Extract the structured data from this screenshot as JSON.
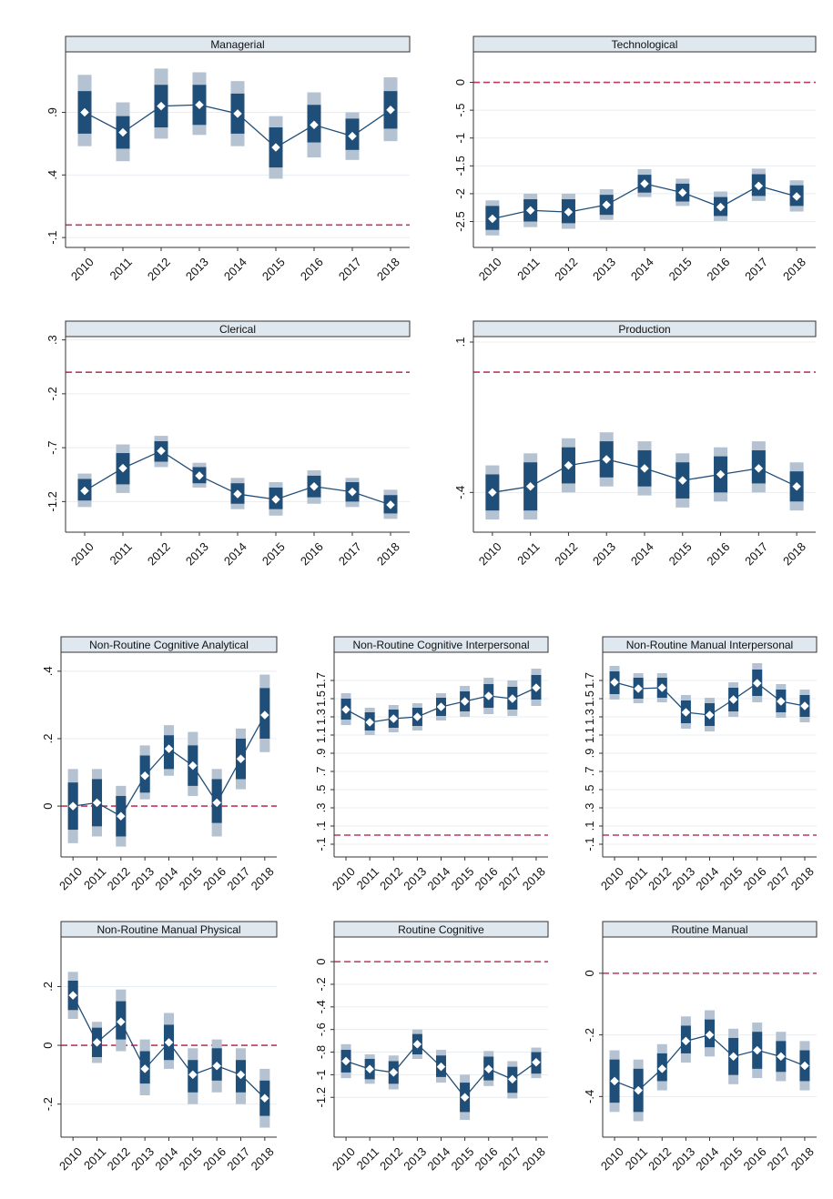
{
  "chart_data": [
    {
      "type": "point-range",
      "title": "Managerial",
      "x": [
        "2010",
        "2011",
        "2012",
        "2013",
        "2014",
        "2015",
        "2016",
        "2017",
        "2018"
      ],
      "y": [
        0.9,
        0.74,
        0.95,
        0.96,
        0.89,
        0.62,
        0.8,
        0.71,
        0.92
      ],
      "ci_inner": [
        [
          0.73,
          1.07
        ],
        [
          0.61,
          0.87
        ],
        [
          0.78,
          1.12
        ],
        [
          0.8,
          1.12
        ],
        [
          0.73,
          1.05
        ],
        [
          0.46,
          0.78
        ],
        [
          0.66,
          0.96
        ],
        [
          0.6,
          0.85
        ],
        [
          0.77,
          1.07
        ]
      ],
      "ci_outer": [
        [
          0.63,
          1.2
        ],
        [
          0.51,
          0.98
        ],
        [
          0.69,
          1.25
        ],
        [
          0.72,
          1.22
        ],
        [
          0.63,
          1.15
        ],
        [
          0.37,
          0.87
        ],
        [
          0.54,
          1.06
        ],
        [
          0.52,
          0.9
        ],
        [
          0.67,
          1.18
        ]
      ],
      "ref_line": 0,
      "yticks": [
        "-.1",
        ".4",
        ".9"
      ],
      "ytick_values": [
        -0.1,
        0.4,
        0.9
      ],
      "ylim": [
        -0.15,
        1.34
      ]
    },
    {
      "type": "point-range",
      "title": "Technological",
      "x": [
        "2010",
        "2011",
        "2012",
        "2013",
        "2014",
        "2015",
        "2016",
        "2017",
        "2018"
      ],
      "y": [
        -2.45,
        -2.3,
        -2.33,
        -2.2,
        -1.82,
        -1.98,
        -2.24,
        -1.86,
        -2.05
      ],
      "ci_inner": [
        [
          -2.65,
          -2.22
        ],
        [
          -2.5,
          -2.1
        ],
        [
          -2.53,
          -2.1
        ],
        [
          -2.38,
          -2.02
        ],
        [
          -1.98,
          -1.66
        ],
        [
          -2.14,
          -1.82
        ],
        [
          -2.4,
          -2.06
        ],
        [
          -2.04,
          -1.65
        ],
        [
          -2.22,
          -1.85
        ]
      ],
      "ci_outer": [
        [
          -2.75,
          -2.12
        ],
        [
          -2.6,
          -2.0
        ],
        [
          -2.63,
          -2.0
        ],
        [
          -2.47,
          -1.92
        ],
        [
          -2.06,
          -1.56
        ],
        [
          -2.22,
          -1.73
        ],
        [
          -2.49,
          -1.96
        ],
        [
          -2.13,
          -1.55
        ],
        [
          -2.32,
          -1.76
        ]
      ],
      "ref_line": 0,
      "yticks": [
        "0",
        "-.5",
        "-1",
        "-1.5",
        "-2",
        "-2.5"
      ],
      "ytick_values": [
        0,
        -0.5,
        -1,
        -1.5,
        -2,
        -2.5
      ],
      "ylim": [
        -2.9,
        0.45
      ]
    },
    {
      "type": "point-range",
      "title": "Clerical",
      "x": [
        "2010",
        "2011",
        "2012",
        "2013",
        "2014",
        "2015",
        "2016",
        "2017",
        "2018"
      ],
      "y": [
        -1.1,
        -0.89,
        -0.73,
        -0.96,
        -1.13,
        -1.18,
        -1.06,
        -1.11,
        -1.23
      ],
      "ci_inner": [
        [
          -1.19,
          -0.99
        ],
        [
          -1.04,
          -0.75
        ],
        [
          -0.83,
          -0.64
        ],
        [
          -1.03,
          -0.88
        ],
        [
          -1.22,
          -1.03
        ],
        [
          -1.27,
          -1.07
        ],
        [
          -1.16,
          -0.96
        ],
        [
          -1.2,
          -1.02
        ],
        [
          -1.31,
          -1.14
        ]
      ],
      "ci_outer": [
        [
          -1.25,
          -0.94
        ],
        [
          -1.12,
          -0.67
        ],
        [
          -0.88,
          -0.59
        ],
        [
          -1.07,
          -0.84
        ],
        [
          -1.27,
          -0.98
        ],
        [
          -1.33,
          -1.02
        ],
        [
          -1.22,
          -0.91
        ],
        [
          -1.25,
          -0.98
        ],
        [
          -1.36,
          -1.09
        ]
      ],
      "ref_line": 0,
      "yticks": [
        "-1.2",
        "-.7",
        "-.2",
        ".3"
      ],
      "ytick_values": [
        -1.2,
        -0.7,
        -0.2,
        0.3
      ],
      "ylim": [
        -1.45,
        0.28
      ]
    },
    {
      "type": "point-range",
      "title": "Production",
      "x": [
        "2010",
        "2011",
        "2012",
        "2013",
        "2014",
        "2015",
        "2016",
        "2017",
        "2018"
      ],
      "y": [
        -0.4,
        -0.38,
        -0.31,
        -0.29,
        -0.32,
        -0.36,
        -0.34,
        -0.32,
        -0.38
      ],
      "ci_inner": [
        [
          -0.46,
          -0.34
        ],
        [
          -0.46,
          -0.3
        ],
        [
          -0.37,
          -0.25
        ],
        [
          -0.35,
          -0.23
        ],
        [
          -0.38,
          -0.26
        ],
        [
          -0.42,
          -0.3
        ],
        [
          -0.4,
          -0.28
        ],
        [
          -0.37,
          -0.26
        ],
        [
          -0.43,
          -0.33
        ]
      ],
      "ci_outer": [
        [
          -0.49,
          -0.31
        ],
        [
          -0.49,
          -0.27
        ],
        [
          -0.4,
          -0.22
        ],
        [
          -0.38,
          -0.2
        ],
        [
          -0.41,
          -0.23
        ],
        [
          -0.45,
          -0.27
        ],
        [
          -0.43,
          -0.25
        ],
        [
          -0.4,
          -0.23
        ],
        [
          -0.46,
          -0.3
        ]
      ],
      "ref_line": 0,
      "yticks": [
        "-.4",
        ".1"
      ],
      "ytick_values": [
        -0.4,
        0.1
      ],
      "ylim": [
        -0.52,
        0.1
      ]
    },
    {
      "type": "point-range",
      "title": "Non-Routine Cognitive Analytical",
      "x": [
        "2010",
        "2011",
        "2012",
        "2013",
        "2014",
        "2015",
        "2016",
        "2017",
        "2018"
      ],
      "y": [
        0.0,
        0.01,
        -0.03,
        0.09,
        0.17,
        0.12,
        0.01,
        0.14,
        0.27
      ],
      "ci_inner": [
        [
          -0.07,
          0.07
        ],
        [
          -0.06,
          0.08
        ],
        [
          -0.09,
          0.03
        ],
        [
          0.04,
          0.15
        ],
        [
          0.11,
          0.21
        ],
        [
          0.06,
          0.18
        ],
        [
          -0.05,
          0.08
        ],
        [
          0.08,
          0.2
        ],
        [
          0.2,
          0.35
        ]
      ],
      "ci_outer": [
        [
          -0.11,
          0.11
        ],
        [
          -0.09,
          0.11
        ],
        [
          -0.12,
          0.06
        ],
        [
          0.02,
          0.18
        ],
        [
          0.09,
          0.24
        ],
        [
          0.03,
          0.22
        ],
        [
          -0.09,
          0.11
        ],
        [
          0.05,
          0.23
        ],
        [
          0.16,
          0.39
        ]
      ],
      "ref_line": 0,
      "yticks": [
        "0",
        ".2",
        ".4"
      ],
      "ytick_values": [
        0,
        0.2,
        0.4
      ],
      "ylim": [
        -0.14,
        0.44
      ]
    },
    {
      "type": "point-range",
      "title": "Non-Routine Cognitive Interpersonal",
      "x": [
        "2010",
        "2011",
        "2012",
        "2013",
        "2014",
        "2015",
        "2016",
        "2017",
        "2018"
      ],
      "y": [
        1.38,
        1.24,
        1.28,
        1.3,
        1.41,
        1.47,
        1.53,
        1.5,
        1.62
      ],
      "ci_inner": [
        [
          1.27,
          1.5
        ],
        [
          1.15,
          1.35
        ],
        [
          1.18,
          1.38
        ],
        [
          1.2,
          1.4
        ],
        [
          1.31,
          1.51
        ],
        [
          1.36,
          1.58
        ],
        [
          1.4,
          1.66
        ],
        [
          1.38,
          1.63
        ],
        [
          1.49,
          1.76
        ]
      ],
      "ci_outer": [
        [
          1.21,
          1.56
        ],
        [
          1.1,
          1.4
        ],
        [
          1.13,
          1.43
        ],
        [
          1.15,
          1.45
        ],
        [
          1.26,
          1.56
        ],
        [
          1.3,
          1.64
        ],
        [
          1.33,
          1.73
        ],
        [
          1.31,
          1.7
        ],
        [
          1.42,
          1.83
        ]
      ],
      "ref_line": 0,
      "yticks": [
        "-.1",
        ".1",
        ".3",
        ".5",
        ".7",
        ".9",
        "1.1",
        "1.3",
        "1.5",
        "1.7"
      ],
      "ytick_values": [
        -0.1,
        0.1,
        0.3,
        0.5,
        0.7,
        0.9,
        1.1,
        1.3,
        1.5,
        1.7
      ],
      "ylim": [
        -0.2,
        1.95
      ]
    },
    {
      "type": "point-range",
      "title": "Non-Routine Manual Interpersonal",
      "x": [
        "2010",
        "2011",
        "2012",
        "2013",
        "2014",
        "2015",
        "2016",
        "2017",
        "2018"
      ],
      "y": [
        1.68,
        1.61,
        1.62,
        1.35,
        1.32,
        1.49,
        1.67,
        1.47,
        1.42
      ],
      "ci_inner": [
        [
          1.55,
          1.8
        ],
        [
          1.5,
          1.73
        ],
        [
          1.51,
          1.73
        ],
        [
          1.23,
          1.48
        ],
        [
          1.2,
          1.45
        ],
        [
          1.36,
          1.62
        ],
        [
          1.53,
          1.82
        ],
        [
          1.35,
          1.6
        ],
        [
          1.3,
          1.54
        ]
      ],
      "ci_outer": [
        [
          1.49,
          1.86
        ],
        [
          1.45,
          1.78
        ],
        [
          1.46,
          1.78
        ],
        [
          1.17,
          1.54
        ],
        [
          1.14,
          1.51
        ],
        [
          1.3,
          1.68
        ],
        [
          1.46,
          1.89
        ],
        [
          1.29,
          1.66
        ],
        [
          1.24,
          1.6
        ]
      ],
      "ref_line": 0,
      "yticks": [
        "-.1",
        ".1",
        ".3",
        ".5",
        ".7",
        ".9",
        "1.1",
        "1.3",
        "1.5",
        "1.7"
      ],
      "ytick_values": [
        -0.1,
        0.1,
        0.3,
        0.5,
        0.7,
        0.9,
        1.1,
        1.3,
        1.5,
        1.7
      ],
      "ylim": [
        -0.2,
        1.95
      ]
    },
    {
      "type": "point-range",
      "title": "Non-Routine Manual Physical",
      "x": [
        "2010",
        "2011",
        "2012",
        "2013",
        "2014",
        "2015",
        "2016",
        "2017",
        "2018"
      ],
      "y": [
        0.17,
        0.01,
        0.08,
        -0.08,
        0.01,
        -0.1,
        -0.07,
        -0.1,
        -0.18
      ],
      "ci_inner": [
        [
          0.12,
          0.22
        ],
        [
          -0.04,
          0.06
        ],
        [
          0.02,
          0.15
        ],
        [
          -0.13,
          -0.02
        ],
        [
          -0.05,
          0.07
        ],
        [
          -0.16,
          -0.05
        ],
        [
          -0.12,
          -0.01
        ],
        [
          -0.16,
          -0.05
        ],
        [
          -0.24,
          -0.12
        ]
      ],
      "ci_outer": [
        [
          0.09,
          0.25
        ],
        [
          -0.06,
          0.08
        ],
        [
          -0.02,
          0.19
        ],
        [
          -0.17,
          0.02
        ],
        [
          -0.08,
          0.11
        ],
        [
          -0.2,
          -0.01
        ],
        [
          -0.16,
          0.02
        ],
        [
          -0.2,
          -0.01
        ],
        [
          -0.28,
          -0.08
        ]
      ],
      "ref_line": 0,
      "yticks": [
        "-.2",
        "0",
        ".2"
      ],
      "ytick_values": [
        -0.2,
        0,
        0.2
      ],
      "ylim": [
        -0.3,
        0.35
      ]
    },
    {
      "type": "point-range",
      "title": "Routine Cognitive",
      "x": [
        "2010",
        "2011",
        "2012",
        "2013",
        "2014",
        "2015",
        "2016",
        "2017",
        "2018"
      ],
      "y": [
        -0.88,
        -0.95,
        -0.98,
        -0.73,
        -0.93,
        -1.2,
        -0.95,
        -1.04,
        -0.89
      ],
      "ci_inner": [
        [
          -0.98,
          -0.78
        ],
        [
          -1.04,
          -0.86
        ],
        [
          -1.08,
          -0.88
        ],
        [
          -0.82,
          -0.64
        ],
        [
          -1.02,
          -0.83
        ],
        [
          -1.33,
          -1.07
        ],
        [
          -1.05,
          -0.84
        ],
        [
          -1.16,
          -0.93
        ],
        [
          -0.99,
          -0.8
        ]
      ],
      "ci_outer": [
        [
          -1.03,
          -0.73
        ],
        [
          -1.08,
          -0.82
        ],
        [
          -1.13,
          -0.83
        ],
        [
          -0.86,
          -0.6
        ],
        [
          -1.07,
          -0.78
        ],
        [
          -1.4,
          -1.0
        ],
        [
          -1.1,
          -0.79
        ],
        [
          -1.21,
          -0.88
        ],
        [
          -1.03,
          -0.76
        ]
      ],
      "ref_line": 0,
      "yticks": [
        "0",
        "-.2",
        "-.4",
        "-.6",
        "-.8",
        "-1",
        "-1.2"
      ],
      "ytick_values": [
        0,
        -0.2,
        -0.4,
        -0.6,
        -0.8,
        -1,
        -1.2
      ],
      "ylim": [
        -1.52,
        0.17
      ]
    },
    {
      "type": "point-range",
      "title": "Routine Manual",
      "x": [
        "2010",
        "2011",
        "2012",
        "2013",
        "2014",
        "2015",
        "2016",
        "2017",
        "2018"
      ],
      "y": [
        -0.35,
        -0.38,
        -0.31,
        -0.22,
        -0.2,
        -0.27,
        -0.25,
        -0.27,
        -0.3
      ],
      "ci_inner": [
        [
          -0.42,
          -0.28
        ],
        [
          -0.45,
          -0.31
        ],
        [
          -0.35,
          -0.26
        ],
        [
          -0.26,
          -0.17
        ],
        [
          -0.24,
          -0.15
        ],
        [
          -0.33,
          -0.21
        ],
        [
          -0.31,
          -0.19
        ],
        [
          -0.32,
          -0.22
        ],
        [
          -0.35,
          -0.25
        ]
      ],
      "ci_outer": [
        [
          -0.45,
          -0.25
        ],
        [
          -0.48,
          -0.28
        ],
        [
          -0.38,
          -0.23
        ],
        [
          -0.29,
          -0.14
        ],
        [
          -0.27,
          -0.12
        ],
        [
          -0.36,
          -0.18
        ],
        [
          -0.34,
          -0.16
        ],
        [
          -0.35,
          -0.19
        ],
        [
          -0.38,
          -0.22
        ]
      ],
      "ref_line": 0,
      "yticks": [
        "-.4",
        "-.2",
        "0"
      ],
      "ytick_values": [
        -0.4,
        -0.2,
        0
      ],
      "ylim": [
        -0.52,
        0.1
      ]
    }
  ],
  "colors": {
    "inner_band": "#1f4e79",
    "outer_band": "#b4c2d1",
    "line": "#1f4e79",
    "marker": "#ffffff",
    "ref_line": "#c0385b",
    "grid": "#e8edf2",
    "title_bg": "#dfe7ef",
    "axis": "#333333"
  }
}
